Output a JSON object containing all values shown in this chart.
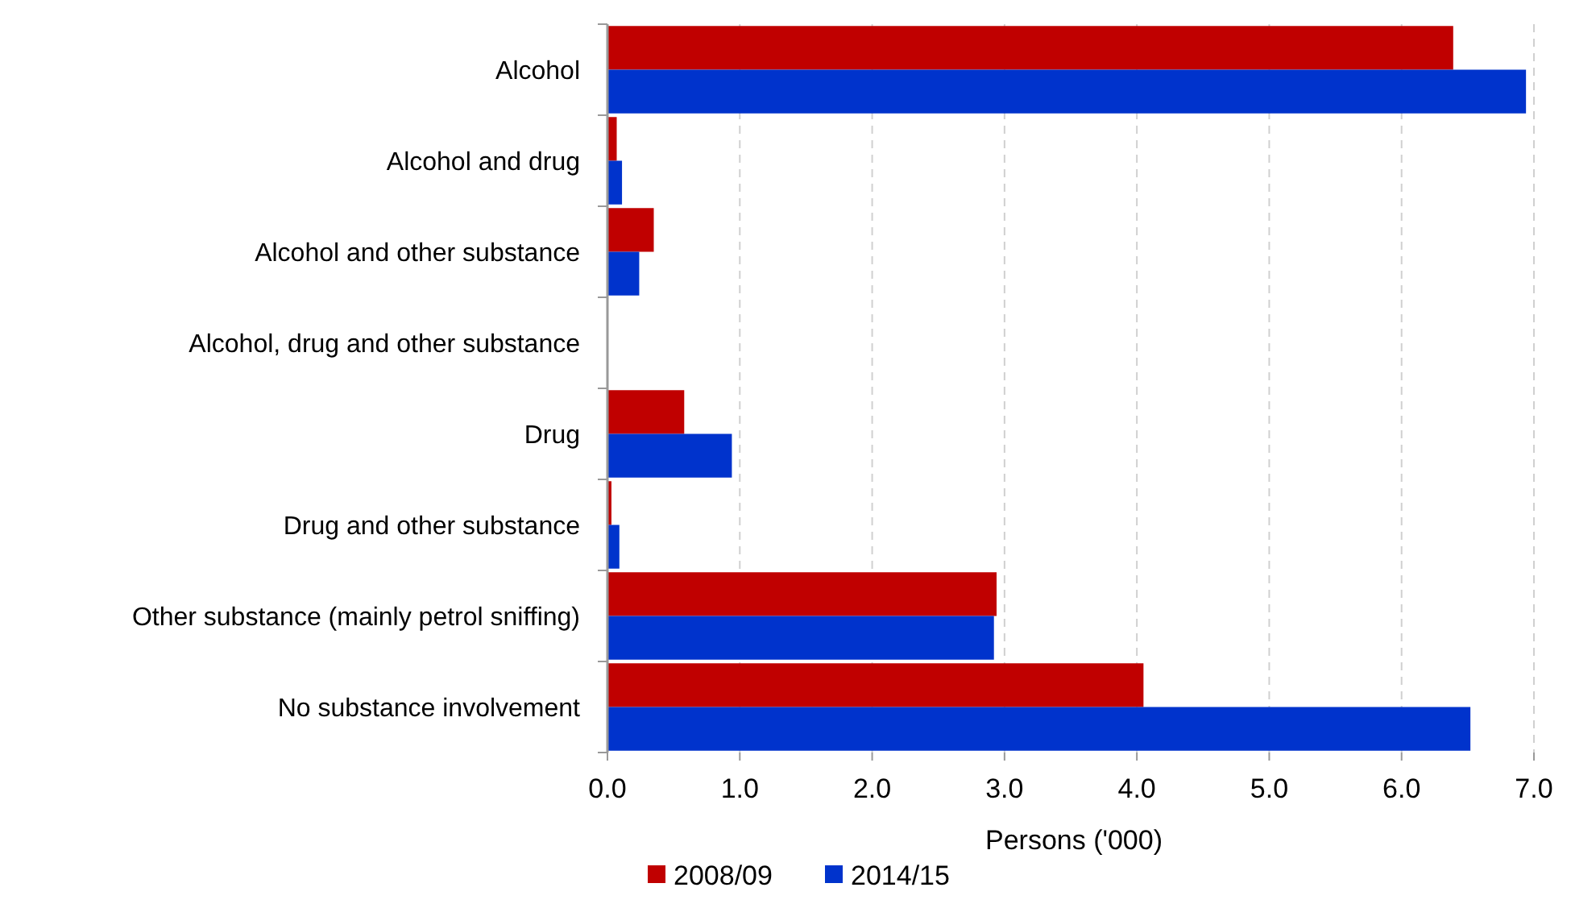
{
  "chart_data": {
    "type": "bar",
    "orientation": "horizontal",
    "xlabel": "Persons ('000)",
    "categories": [
      "Alcohol",
      "Alcohol and drug",
      "Alcohol and other substance",
      "Alcohol, drug and other substance",
      "Drug",
      "Drug and other substance",
      "Other substance (mainly petrol sniffing)",
      "No substance involvement"
    ],
    "series": [
      {
        "name": "2008/09",
        "color": "#c00000",
        "values": [
          6.39,
          0.07,
          0.35,
          0,
          0.58,
          0.03,
          2.94,
          4.05
        ]
      },
      {
        "name": "2014/15",
        "color": "#0033cc",
        "values": [
          6.94,
          0.11,
          0.24,
          0,
          0.94,
          0.09,
          2.92,
          6.52
        ]
      }
    ],
    "xlim": [
      0,
      7
    ],
    "xticks": [
      {
        "value": 0,
        "label": "0.0"
      },
      {
        "value": 1,
        "label": "1.0"
      },
      {
        "value": 2,
        "label": "2.0"
      },
      {
        "value": 3,
        "label": "3.0"
      },
      {
        "value": 4,
        "label": "4.0"
      },
      {
        "value": 5,
        "label": "5.0"
      },
      {
        "value": 6,
        "label": "6.0"
      },
      {
        "value": 7,
        "label": "7.0"
      }
    ],
    "grid": "x",
    "legend": "bottom"
  }
}
